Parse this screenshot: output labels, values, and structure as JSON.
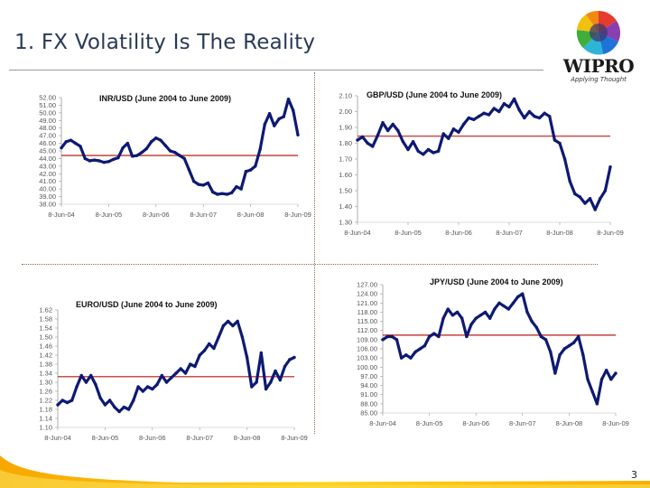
{
  "slide": {
    "title": "1. FX Volatility Is The Reality",
    "page_number": "3",
    "logo": {
      "name": "WIPRO",
      "tagline": "Applying Thought"
    }
  },
  "colors": {
    "series": "#0d1a72",
    "reference_line": "#c8504a",
    "title_text": "#2a3a55",
    "footer_yellow": "#f5b400"
  },
  "chart_data": [
    {
      "id": "inr",
      "type": "line",
      "title": "INR/USD (June 2004 to June 2009)",
      "xlabel": "",
      "ylabel": "",
      "x_ticks": [
        "8-Jun-04",
        "8-Jun-05",
        "8-Jun-06",
        "8-Jun-07",
        "8-Jun-08",
        "8-Jun-09"
      ],
      "y_ticks": [
        "52.00",
        "51.00",
        "50.00",
        "49.00",
        "48.00",
        "47.00",
        "46.00",
        "45.00",
        "44.00",
        "43.00",
        "42.00",
        "41.00",
        "40.00",
        "39.00",
        "38.00"
      ],
      "ylim": [
        38,
        52
      ],
      "reference_line": 44.4,
      "x": [
        0,
        0.1,
        0.2,
        0.3,
        0.4,
        0.5,
        0.6,
        0.7,
        0.8,
        0.9,
        1.0,
        1.1,
        1.2,
        1.3,
        1.4,
        1.5,
        1.6,
        1.7,
        1.8,
        1.9,
        2.0,
        2.1,
        2.2,
        2.3,
        2.4,
        2.5,
        2.6,
        2.7,
        2.8,
        2.9,
        3.0,
        3.1,
        3.2,
        3.3,
        3.4,
        3.5,
        3.6,
        3.7,
        3.8,
        3.9,
        4.0,
        4.1,
        4.2,
        4.3,
        4.4,
        4.5,
        4.6,
        4.7,
        4.8,
        4.9,
        5.0
      ],
      "series": [
        {
          "name": "INR/USD",
          "values": [
            45.4,
            46.2,
            46.4,
            46.0,
            45.6,
            44.0,
            43.7,
            43.8,
            43.7,
            43.5,
            43.6,
            43.9,
            44.1,
            45.4,
            46.0,
            44.3,
            44.4,
            44.8,
            45.3,
            46.2,
            46.7,
            46.4,
            45.7,
            45.0,
            44.8,
            44.4,
            44.0,
            42.5,
            41.0,
            40.6,
            40.5,
            40.8,
            39.6,
            39.3,
            39.4,
            39.3,
            39.5,
            40.3,
            40.0,
            42.3,
            42.5,
            43.0,
            45.2,
            48.5,
            49.9,
            48.3,
            49.2,
            49.5,
            51.8,
            50.3,
            47.1
          ]
        }
      ]
    },
    {
      "id": "gbp",
      "type": "line",
      "title": "GBP/USD (June 2004 to June 2009)",
      "xlabel": "",
      "ylabel": "",
      "x_ticks": [
        "8-Jun-04",
        "8-Jun-05",
        "8-Jun-06",
        "8-Jun-07",
        "8-Jun-08",
        "8-Jun-09"
      ],
      "y_ticks": [
        "2.10",
        "2.00",
        "1.90",
        "1.80",
        "1.70",
        "1.60",
        "1.50",
        "1.40",
        "1.30"
      ],
      "ylim": [
        1.3,
        2.1
      ],
      "reference_line": 1.845,
      "x": [
        0,
        0.1,
        0.2,
        0.3,
        0.4,
        0.5,
        0.6,
        0.7,
        0.8,
        0.9,
        1.0,
        1.1,
        1.2,
        1.3,
        1.4,
        1.5,
        1.6,
        1.7,
        1.8,
        1.9,
        2.0,
        2.1,
        2.2,
        2.3,
        2.4,
        2.5,
        2.6,
        2.7,
        2.8,
        2.9,
        3.0,
        3.1,
        3.2,
        3.3,
        3.4,
        3.5,
        3.6,
        3.7,
        3.8,
        3.9,
        4.0,
        4.1,
        4.2,
        4.3,
        4.4,
        4.5,
        4.6,
        4.7,
        4.8,
        4.9,
        5.0
      ],
      "series": [
        {
          "name": "GBP/USD",
          "values": [
            1.82,
            1.84,
            1.8,
            1.78,
            1.85,
            1.93,
            1.88,
            1.92,
            1.88,
            1.81,
            1.76,
            1.81,
            1.75,
            1.73,
            1.76,
            1.74,
            1.75,
            1.86,
            1.83,
            1.89,
            1.87,
            1.92,
            1.96,
            1.95,
            1.97,
            1.99,
            1.98,
            2.02,
            2.0,
            2.05,
            2.03,
            2.08,
            2.01,
            1.96,
            2.0,
            1.97,
            1.96,
            1.99,
            1.97,
            1.82,
            1.8,
            1.7,
            1.56,
            1.48,
            1.46,
            1.42,
            1.45,
            1.38,
            1.45,
            1.5,
            1.65
          ]
        }
      ]
    },
    {
      "id": "euro",
      "type": "line",
      "title": "EURO/USD (June 2004 to June 2009)",
      "xlabel": "",
      "ylabel": "",
      "x_ticks": [
        "8-Jun-04",
        "8-Jun-05",
        "8-Jun-06",
        "8-Jun-07",
        "8-Jun-08",
        "8-Jun-09"
      ],
      "y_ticks": [
        "1.62",
        "1.58",
        "1.54",
        "1.50",
        "1.46",
        "1.42",
        "1.38",
        "1.34",
        "1.30",
        "1.26",
        "1.22",
        "1.18",
        "1.14",
        "1.10"
      ],
      "ylim": [
        1.1,
        1.62
      ],
      "reference_line": 1.325,
      "x": [
        0,
        0.1,
        0.2,
        0.3,
        0.4,
        0.5,
        0.6,
        0.7,
        0.8,
        0.9,
        1.0,
        1.1,
        1.2,
        1.3,
        1.4,
        1.5,
        1.6,
        1.7,
        1.8,
        1.9,
        2.0,
        2.1,
        2.2,
        2.3,
        2.4,
        2.5,
        2.6,
        2.7,
        2.8,
        2.9,
        3.0,
        3.1,
        3.2,
        3.3,
        3.4,
        3.5,
        3.6,
        3.7,
        3.8,
        3.9,
        4.0,
        4.1,
        4.2,
        4.3,
        4.4,
        4.5,
        4.6,
        4.7,
        4.8,
        4.9,
        5.0
      ],
      "series": [
        {
          "name": "EURO/USD",
          "values": [
            1.2,
            1.22,
            1.21,
            1.22,
            1.28,
            1.33,
            1.3,
            1.33,
            1.29,
            1.23,
            1.2,
            1.22,
            1.19,
            1.17,
            1.19,
            1.18,
            1.22,
            1.28,
            1.26,
            1.28,
            1.27,
            1.29,
            1.33,
            1.3,
            1.32,
            1.34,
            1.36,
            1.34,
            1.38,
            1.37,
            1.42,
            1.44,
            1.47,
            1.45,
            1.5,
            1.55,
            1.57,
            1.55,
            1.57,
            1.5,
            1.41,
            1.28,
            1.3,
            1.43,
            1.27,
            1.3,
            1.35,
            1.31,
            1.37,
            1.4,
            1.41
          ]
        }
      ]
    },
    {
      "id": "jpy",
      "type": "line",
      "title": "JPY/USD (June 2004 to June 2009)",
      "xlabel": "",
      "ylabel": "",
      "x_ticks": [
        "8-Jun-04",
        "8-Jun-05",
        "8-Jun-06",
        "8-Jun-07",
        "8-Jun-08",
        "8-Jun-09"
      ],
      "y_ticks": [
        "127.00",
        "124.00",
        "121.00",
        "118.00",
        "115.00",
        "112.00",
        "109.00",
        "106.00",
        "103.00",
        "100.00",
        "97.00",
        "94.00",
        "91.00",
        "88.00",
        "85.00"
      ],
      "ylim": [
        85,
        127
      ],
      "reference_line": 110.5,
      "x": [
        0,
        0.1,
        0.2,
        0.3,
        0.4,
        0.5,
        0.6,
        0.7,
        0.8,
        0.9,
        1.0,
        1.1,
        1.2,
        1.3,
        1.4,
        1.5,
        1.6,
        1.7,
        1.8,
        1.9,
        2.0,
        2.1,
        2.2,
        2.3,
        2.4,
        2.5,
        2.6,
        2.7,
        2.8,
        2.9,
        3.0,
        3.1,
        3.2,
        3.3,
        3.4,
        3.5,
        3.6,
        3.7,
        3.8,
        3.9,
        4.0,
        4.1,
        4.2,
        4.3,
        4.4,
        4.5,
        4.6,
        4.7,
        4.8,
        4.9,
        5.0
      ],
      "series": [
        {
          "name": "JPY/USD",
          "values": [
            109,
            110,
            110,
            109,
            103,
            104,
            103,
            105,
            106,
            107,
            110,
            111,
            110,
            116,
            119,
            117,
            118,
            116,
            110,
            114,
            116,
            117,
            118,
            116,
            119,
            121,
            120,
            119,
            121,
            123,
            124,
            118,
            115,
            113,
            110,
            109,
            105,
            98,
            104,
            106,
            107,
            108,
            110,
            104,
            96,
            92,
            88,
            96,
            99,
            96,
            98
          ]
        }
      ]
    }
  ]
}
